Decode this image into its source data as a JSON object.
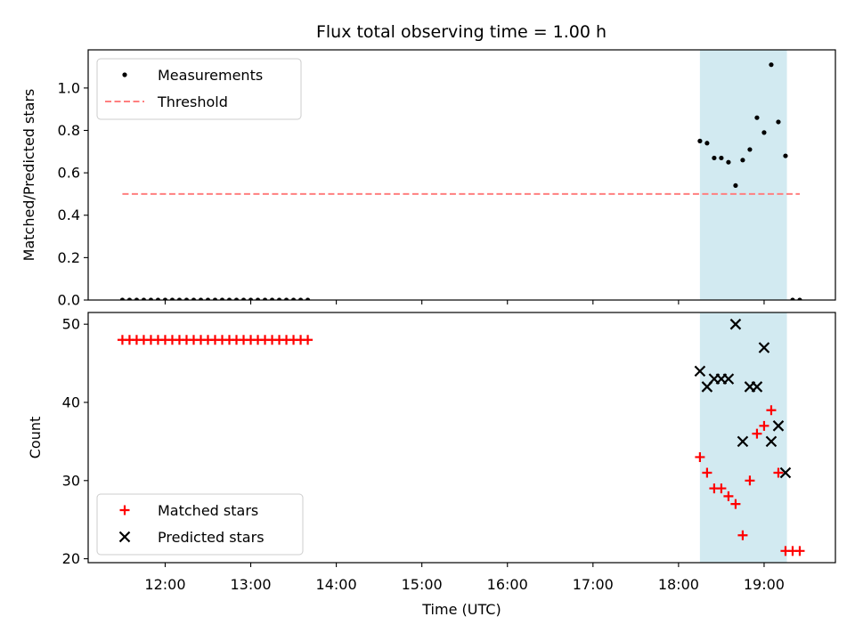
{
  "chart_data": [
    {
      "type": "scatter",
      "title": "Flux total observing time = 1.00 h",
      "xlabel": "",
      "ylabel": "Matched/Predicted stars",
      "ylim": [
        0,
        1.18
      ],
      "yticks": [
        "0.0",
        "0.2",
        "0.4",
        "0.6",
        "0.8",
        "1.0"
      ],
      "xlim": [
        "11:06",
        "19:50"
      ],
      "grid": false,
      "legend_position": "top-left",
      "shaded_region": {
        "x_start": "18:15",
        "x_end": "19:16",
        "color": "#add8e6"
      },
      "series": [
        {
          "name": "Measurements",
          "marker": "dot",
          "color": "#000000",
          "points": [
            [
              "11:30",
              0
            ],
            [
              "11:35",
              0
            ],
            [
              "11:40",
              0
            ],
            [
              "11:45",
              0
            ],
            [
              "11:50",
              0
            ],
            [
              "11:55",
              0
            ],
            [
              "12:00",
              0
            ],
            [
              "12:05",
              0
            ],
            [
              "12:10",
              0
            ],
            [
              "12:15",
              0
            ],
            [
              "12:20",
              0
            ],
            [
              "12:25",
              0
            ],
            [
              "12:30",
              0
            ],
            [
              "12:35",
              0
            ],
            [
              "12:40",
              0
            ],
            [
              "12:45",
              0
            ],
            [
              "12:50",
              0
            ],
            [
              "12:55",
              0
            ],
            [
              "13:00",
              0
            ],
            [
              "13:05",
              0
            ],
            [
              "13:10",
              0
            ],
            [
              "13:15",
              0
            ],
            [
              "13:20",
              0
            ],
            [
              "13:25",
              0
            ],
            [
              "13:30",
              0
            ],
            [
              "13:35",
              0
            ],
            [
              "13:40",
              0
            ],
            [
              "18:15",
              0.75
            ],
            [
              "18:20",
              0.74
            ],
            [
              "18:25",
              0.67
            ],
            [
              "18:30",
              0.67
            ],
            [
              "18:35",
              0.65
            ],
            [
              "18:40",
              0.54
            ],
            [
              "18:45",
              0.66
            ],
            [
              "18:50",
              0.71
            ],
            [
              "18:55",
              0.86
            ],
            [
              "19:00",
              0.79
            ],
            [
              "19:05",
              1.11
            ],
            [
              "19:10",
              0.84
            ],
            [
              "19:15",
              0.68
            ],
            [
              "19:20",
              0
            ],
            [
              "19:25",
              0
            ]
          ]
        },
        {
          "name": "Threshold",
          "style": "dashed-line",
          "color": "#ff7f7f",
          "points": [
            [
              "11:30",
              0.5
            ],
            [
              "19:25",
              0.5
            ]
          ]
        }
      ]
    },
    {
      "type": "scatter",
      "title": "",
      "xlabel": "Time (UTC)",
      "ylabel": "Count",
      "ylim": [
        19.5,
        51.5
      ],
      "yticks": [
        "20",
        "30",
        "40",
        "50"
      ],
      "xlim": [
        "11:06",
        "19:50"
      ],
      "xticks": [
        "12:00",
        "13:00",
        "14:00",
        "15:00",
        "16:00",
        "17:00",
        "18:00",
        "19:00"
      ],
      "grid": false,
      "legend_position": "bottom-left",
      "shaded_region": {
        "x_start": "18:15",
        "x_end": "19:16",
        "color": "#add8e6"
      },
      "series": [
        {
          "name": "Matched stars",
          "marker": "plus",
          "color": "#ff0000",
          "points": [
            [
              "11:30",
              48
            ],
            [
              "11:35",
              48
            ],
            [
              "11:40",
              48
            ],
            [
              "11:45",
              48
            ],
            [
              "11:50",
              48
            ],
            [
              "11:55",
              48
            ],
            [
              "12:00",
              48
            ],
            [
              "12:05",
              48
            ],
            [
              "12:10",
              48
            ],
            [
              "12:15",
              48
            ],
            [
              "12:20",
              48
            ],
            [
              "12:25",
              48
            ],
            [
              "12:30",
              48
            ],
            [
              "12:35",
              48
            ],
            [
              "12:40",
              48
            ],
            [
              "12:45",
              48
            ],
            [
              "12:50",
              48
            ],
            [
              "12:55",
              48
            ],
            [
              "13:00",
              48
            ],
            [
              "13:05",
              48
            ],
            [
              "13:10",
              48
            ],
            [
              "13:15",
              48
            ],
            [
              "13:20",
              48
            ],
            [
              "13:25",
              48
            ],
            [
              "13:30",
              48
            ],
            [
              "13:35",
              48
            ],
            [
              "13:40",
              48
            ],
            [
              "18:15",
              33
            ],
            [
              "18:20",
              31
            ],
            [
              "18:25",
              29
            ],
            [
              "18:30",
              29
            ],
            [
              "18:35",
              28
            ],
            [
              "18:40",
              27
            ],
            [
              "18:45",
              23
            ],
            [
              "18:50",
              30
            ],
            [
              "18:55",
              36
            ],
            [
              "19:00",
              37
            ],
            [
              "19:05",
              39
            ],
            [
              "19:10",
              31
            ],
            [
              "19:15",
              21
            ],
            [
              "19:20",
              21
            ],
            [
              "19:25",
              21
            ]
          ]
        },
        {
          "name": "Predicted stars",
          "marker": "x",
          "color": "#000000",
          "points": [
            [
              "18:15",
              44
            ],
            [
              "18:20",
              42
            ],
            [
              "18:25",
              43
            ],
            [
              "18:30",
              43
            ],
            [
              "18:35",
              43
            ],
            [
              "18:40",
              50
            ],
            [
              "18:45",
              35
            ],
            [
              "18:50",
              42
            ],
            [
              "18:55",
              42
            ],
            [
              "19:00",
              47
            ],
            [
              "19:05",
              35
            ],
            [
              "19:10",
              37
            ],
            [
              "19:15",
              31
            ]
          ]
        }
      ]
    }
  ]
}
